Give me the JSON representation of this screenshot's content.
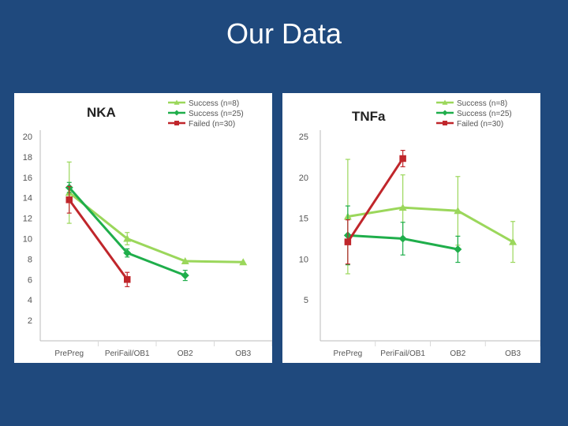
{
  "slide": {
    "title": "Our Data"
  },
  "colors": {
    "background": "#1f497d",
    "panel": "#ffffff"
  },
  "chart_data": [
    {
      "type": "line",
      "title": "NKA",
      "categories": [
        "PrePreg",
        "PeriFail/OB1",
        "OB2",
        "OB3"
      ],
      "ylim": [
        0,
        20
      ],
      "yticks": [
        "20",
        "18",
        "16",
        "14",
        "12",
        "10",
        "8",
        "6",
        "4",
        "2"
      ],
      "ytick_values": [
        20,
        18,
        16,
        14,
        12,
        10,
        8,
        6,
        4,
        2
      ],
      "grid": "vertical category separators",
      "legend_position": "top-right",
      "series": [
        {
          "name": "Success (n=8)",
          "color": "#9bd75b",
          "marker": "triangle",
          "values": [
            14.5,
            10.0,
            7.8,
            7.7
          ],
          "errors": [
            3.0,
            0.6,
            0,
            0
          ]
        },
        {
          "name": "Success (n=25)",
          "color": "#1fae4b",
          "marker": "diamond",
          "values": [
            15.0,
            8.6,
            6.4,
            null
          ],
          "errors": [
            0.5,
            0.4,
            0.5,
            0
          ]
        },
        {
          "name": "Failed (n=30)",
          "color": "#c0262b",
          "marker": "square",
          "values": [
            13.8,
            6.0,
            null,
            null
          ],
          "errors": [
            1.3,
            0.7,
            0,
            0
          ]
        }
      ]
    },
    {
      "type": "line",
      "title": "TNFa",
      "categories": [
        "PrePreg",
        "PeriFail/OB1",
        "OB2",
        "OB3"
      ],
      "ylim": [
        0,
        25
      ],
      "yticks": [
        "25",
        "20",
        "15",
        "10",
        "5"
      ],
      "ytick_values": [
        25,
        20,
        15,
        10,
        5
      ],
      "grid": "vertical category separators",
      "legend_position": "top-right",
      "series": [
        {
          "name": "Success (n=8)",
          "color": "#9bd75b",
          "marker": "triangle",
          "values": [
            15.2,
            16.3,
            15.9,
            12.1
          ],
          "errors": [
            7.0,
            4.0,
            4.2,
            2.5
          ]
        },
        {
          "name": "Success (n=25)",
          "color": "#1fae4b",
          "marker": "diamond",
          "values": [
            12.9,
            12.5,
            11.2,
            null
          ],
          "errors": [
            3.6,
            2.0,
            1.6,
            0
          ]
        },
        {
          "name": "Failed (n=30)",
          "color": "#c0262b",
          "marker": "square",
          "values": [
            12.1,
            22.3,
            null,
            null
          ],
          "errors": [
            2.7,
            1.0,
            0,
            0
          ]
        }
      ]
    }
  ]
}
